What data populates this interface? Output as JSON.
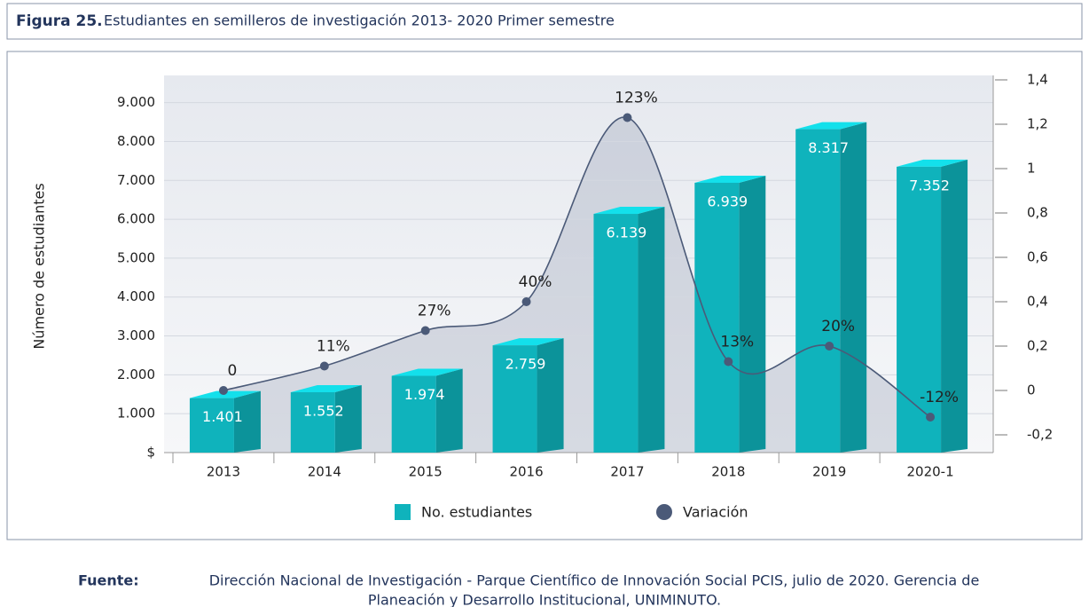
{
  "figure_label": "Figura 25.",
  "chart_data": {
    "type": "bar_line",
    "title": "Estudiantes en semilleros de investigación 2013- 2020 Primer semestre",
    "y_label": "Número de estudiantes",
    "categories": [
      "2013",
      "2014",
      "2015",
      "2016",
      "2017",
      "2018",
      "2019",
      "2020-1"
    ],
    "series": [
      {
        "name": "No. estudiantes",
        "color": "#0fb3bc",
        "type": "bar",
        "values": [
          1401,
          1552,
          1974,
          2759,
          6139,
          6939,
          8317,
          7352
        ],
        "value_labels": [
          "1.401",
          "1.552",
          "1.974",
          "2.759",
          "6.139",
          "6.939",
          "8.317",
          "7.352"
        ]
      },
      {
        "name": "Variación",
        "color": "#4b5a78",
        "type": "line",
        "axis": "y2",
        "values": [
          0,
          0.11,
          0.27,
          0.4,
          1.23,
          0.13,
          0.2,
          -0.12
        ],
        "value_labels": [
          "0",
          "11%",
          "27%",
          "40%",
          "123%",
          "13%",
          "20%",
          "-12%"
        ]
      }
    ],
    "ylim": [
      0,
      9700
    ],
    "yticks": [
      {
        "value": 0,
        "label": "$"
      },
      {
        "value": 1000,
        "label": "1.000"
      },
      {
        "value": 2000,
        "label": "2.000"
      },
      {
        "value": 3000,
        "label": "3.000"
      },
      {
        "value": 4000,
        "label": "4.000"
      },
      {
        "value": 5000,
        "label": "5.000"
      },
      {
        "value": 6000,
        "label": "6.000"
      },
      {
        "value": 7000,
        "label": "7.000"
      },
      {
        "value": 8000,
        "label": "8.000"
      },
      {
        "value": 9000,
        "label": "9.000"
      }
    ],
    "y2lim": [
      -0.28,
      1.42
    ],
    "y2ticks": [
      {
        "value": -0.2,
        "label": "-0,2"
      },
      0,
      {
        "value": 0.2,
        "label": "0,2"
      },
      {
        "value": 0.4,
        "label": "0,4"
      },
      {
        "value": 0.6,
        "label": "0,6"
      },
      {
        "value": 0.8,
        "label": "0,8"
      },
      1,
      {
        "value": 1.2,
        "label": "1,2"
      },
      {
        "value": 1.4,
        "label": "1,4"
      }
    ],
    "grid": true,
    "legend": "bottom"
  },
  "source": {
    "label": "Fuente:",
    "lines": [
      "Dirección Nacional de Investigación - Parque Científico de Innovación Social PCIS, julio de 2020. Gerencia de",
      "Planeación y Desarrollo Institucional, UNIMINUTO."
    ]
  }
}
